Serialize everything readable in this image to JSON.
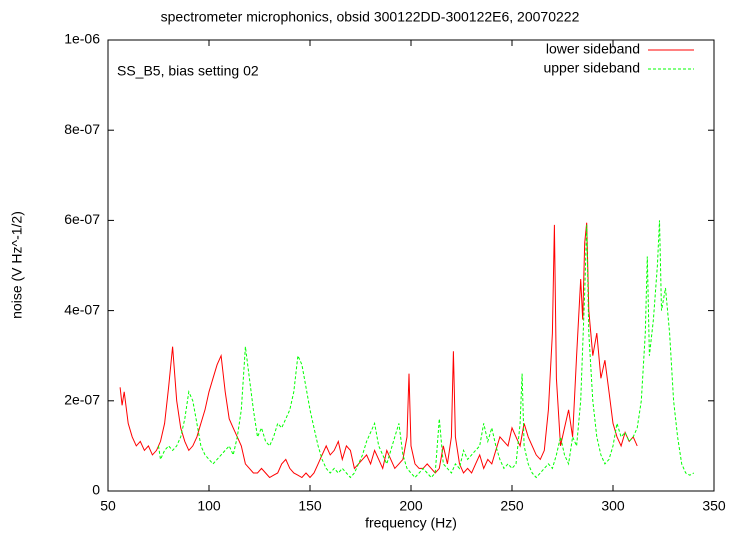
{
  "chart_data": {
    "type": "line",
    "title": "spectrometer microphonics, obsid 300122DD-300122E6, 20070222",
    "annotation": "SS_B5, bias setting 02",
    "xlabel": "frequency (Hz)",
    "ylabel": "noise (V Hz^-1/2)",
    "xlim": [
      50,
      350
    ],
    "xticks": [
      50,
      100,
      150,
      200,
      250,
      300,
      350
    ],
    "ylim": [
      0,
      1e-06
    ],
    "yticks": [
      0,
      {
        "value": 2e-07,
        "label": "2e-07"
      },
      {
        "value": 4e-07,
        "label": "4e-07"
      },
      {
        "value": 6e-07,
        "label": "6e-07"
      },
      {
        "value": 8e-07,
        "label": "8e-07"
      },
      {
        "value": 1e-06,
        "label": "1e-06"
      }
    ],
    "legend": "top-right",
    "series": [
      {
        "name": "lower sideband",
        "color": "#ff0000",
        "x": [
          56,
          57,
          58,
          60,
          62,
          64,
          66,
          68,
          70,
          72,
          74,
          76,
          78,
          80,
          82,
          84,
          86,
          88,
          90,
          92,
          94,
          96,
          98,
          100,
          102,
          104,
          106,
          108,
          110,
          112,
          114,
          116,
          118,
          120,
          122,
          124,
          126,
          128,
          130,
          132,
          134,
          136,
          138,
          140,
          142,
          144,
          146,
          148,
          150,
          152,
          154,
          156,
          158,
          160,
          162,
          164,
          166,
          168,
          170,
          172,
          174,
          176,
          178,
          180,
          182,
          184,
          186,
          188,
          190,
          192,
          194,
          196,
          198,
          199,
          200,
          202,
          204,
          206,
          208,
          210,
          212,
          214,
          216,
          218,
          220,
          221,
          222,
          224,
          226,
          228,
          230,
          232,
          234,
          236,
          238,
          240,
          242,
          244,
          246,
          248,
          250,
          252,
          254,
          256,
          258,
          260,
          262,
          264,
          266,
          268,
          270,
          271,
          272,
          274,
          276,
          278,
          280,
          282,
          284,
          285,
          286,
          287,
          288,
          290,
          292,
          294,
          296,
          298,
          300,
          302,
          304,
          306,
          308,
          310,
          312
        ],
        "values": [
          2.3e-07,
          1.9e-07,
          2.2e-07,
          1.5e-07,
          1.2e-07,
          1e-07,
          1.1e-07,
          9e-08,
          1e-07,
          8e-08,
          9e-08,
          1.1e-07,
          1.5e-07,
          2.3e-07,
          3.2e-07,
          2e-07,
          1.4e-07,
          1.1e-07,
          9e-08,
          1e-07,
          1.2e-07,
          1.5e-07,
          1.8e-07,
          2.2e-07,
          2.5e-07,
          2.8e-07,
          3e-07,
          2.2e-07,
          1.6e-07,
          1.4e-07,
          1.2e-07,
          1e-07,
          6e-08,
          5e-08,
          4e-08,
          4e-08,
          5e-08,
          4e-08,
          3e-08,
          3.5e-08,
          4e-08,
          6e-08,
          7e-08,
          5e-08,
          4e-08,
          3.5e-08,
          3e-08,
          4e-08,
          3e-08,
          4e-08,
          6e-08,
          8e-08,
          1e-07,
          8e-08,
          9e-08,
          1.1e-07,
          7e-08,
          1e-07,
          9e-08,
          5e-08,
          6e-08,
          7e-08,
          8e-08,
          6e-08,
          9e-08,
          7e-08,
          5e-08,
          9e-08,
          7e-08,
          5e-08,
          6e-08,
          7e-08,
          1.2e-07,
          2.6e-07,
          1e-07,
          6e-08,
          5e-08,
          5e-08,
          6e-08,
          5e-08,
          4e-08,
          5e-08,
          1e-07,
          6e-08,
          1.2e-07,
          3.1e-07,
          1.2e-07,
          6e-08,
          4e-08,
          5e-08,
          4e-08,
          6e-08,
          8e-08,
          5e-08,
          7e-08,
          6e-08,
          9e-08,
          1.2e-07,
          1.1e-07,
          1e-07,
          1.4e-07,
          1.2e-07,
          1e-07,
          1.5e-07,
          1.2e-07,
          1e-07,
          8e-08,
          7e-08,
          9e-08,
          1.8e-07,
          3.5e-07,
          5.9e-07,
          2.5e-07,
          1e-07,
          1.4e-07,
          1.8e-07,
          1.2e-07,
          3e-07,
          4.7e-07,
          3.8e-07,
          5.5e-07,
          5.95e-07,
          4e-07,
          3e-07,
          3.5e-07,
          2.5e-07,
          2.9e-07,
          2.2e-07,
          1.5e-07,
          1.2e-07,
          1e-07,
          1.3e-07,
          1.1e-07,
          1.2e-07,
          1e-07
        ]
      },
      {
        "name": "upper sideband",
        "color": "#00ff00",
        "dash": true,
        "x": [
          75,
          76,
          78,
          80,
          82,
          84,
          86,
          88,
          90,
          92,
          94,
          96,
          98,
          100,
          102,
          104,
          106,
          108,
          110,
          112,
          114,
          116,
          118,
          120,
          122,
          124,
          126,
          128,
          130,
          132,
          134,
          136,
          138,
          140,
          142,
          144,
          146,
          148,
          150,
          152,
          154,
          156,
          158,
          160,
          162,
          164,
          166,
          168,
          170,
          172,
          174,
          176,
          178,
          180,
          182,
          184,
          186,
          188,
          190,
          192,
          194,
          196,
          198,
          200,
          202,
          204,
          206,
          208,
          210,
          212,
          214,
          216,
          218,
          220,
          222,
          224,
          226,
          228,
          230,
          232,
          234,
          236,
          238,
          240,
          242,
          244,
          246,
          248,
          250,
          252,
          254,
          255,
          256,
          258,
          260,
          262,
          264,
          266,
          268,
          270,
          272,
          274,
          276,
          278,
          280,
          282,
          284,
          286,
          287,
          288,
          290,
          292,
          294,
          296,
          298,
          300,
          302,
          304,
          306,
          308,
          310,
          312,
          314,
          316,
          317,
          318,
          320,
          322,
          323,
          324,
          326,
          328,
          330,
          332,
          334,
          336,
          338,
          340
        ],
        "values": [
          1e-07,
          7e-08,
          9e-08,
          1e-07,
          9e-08,
          1e-07,
          1.2e-07,
          1.6e-07,
          2.2e-07,
          2e-07,
          1.5e-07,
          1e-07,
          8e-08,
          7e-08,
          6e-08,
          7e-08,
          8e-08,
          9e-08,
          1e-07,
          8e-08,
          1.2e-07,
          1.8e-07,
          3.2e-07,
          2.5e-07,
          1.8e-07,
          1.2e-07,
          1.4e-07,
          1.1e-07,
          1e-07,
          1.2e-07,
          1.5e-07,
          1.4e-07,
          1.6e-07,
          1.8e-07,
          2.2e-07,
          3e-07,
          2.8e-07,
          2.3e-07,
          1.8e-07,
          1.4e-07,
          1e-07,
          7e-08,
          5e-08,
          4e-08,
          5e-08,
          4e-08,
          5e-08,
          4e-08,
          3e-08,
          4e-08,
          6e-08,
          8e-08,
          1.1e-07,
          1.3e-07,
          1.5e-07,
          1e-07,
          8e-08,
          6e-08,
          9e-08,
          1.2e-07,
          1.5e-07,
          8e-08,
          5e-08,
          4e-08,
          3e-08,
          4e-08,
          5e-08,
          4e-08,
          3e-08,
          4e-08,
          1.6e-07,
          6e-08,
          5e-08,
          4e-08,
          6e-08,
          5e-08,
          9e-08,
          7e-08,
          8e-08,
          9e-08,
          1e-07,
          1.5e-07,
          1.1e-07,
          1.4e-07,
          1e-07,
          7e-08,
          5e-08,
          6e-08,
          5e-08,
          6e-08,
          1.5e-07,
          2.6e-07,
          1e-07,
          6e-08,
          4e-08,
          3e-08,
          4e-08,
          5e-08,
          6e-08,
          5e-08,
          8e-08,
          1.2e-07,
          8e-08,
          6e-08,
          1.2e-07,
          1e-07,
          2e-07,
          4.4e-07,
          5.9e-07,
          3.5e-07,
          2e-07,
          1.2e-07,
          8e-08,
          6e-08,
          7e-08,
          1e-07,
          1.5e-07,
          1.2e-07,
          1.3e-07,
          1.1e-07,
          1.2e-07,
          1.4e-07,
          2e-07,
          3.5e-07,
          5.2e-07,
          3e-07,
          3.8e-07,
          5e-07,
          6e-07,
          4e-07,
          4.5e-07,
          3.5e-07,
          2e-07,
          1.2e-07,
          6e-08,
          4e-08,
          3.5e-08,
          4e-08
        ]
      }
    ]
  }
}
